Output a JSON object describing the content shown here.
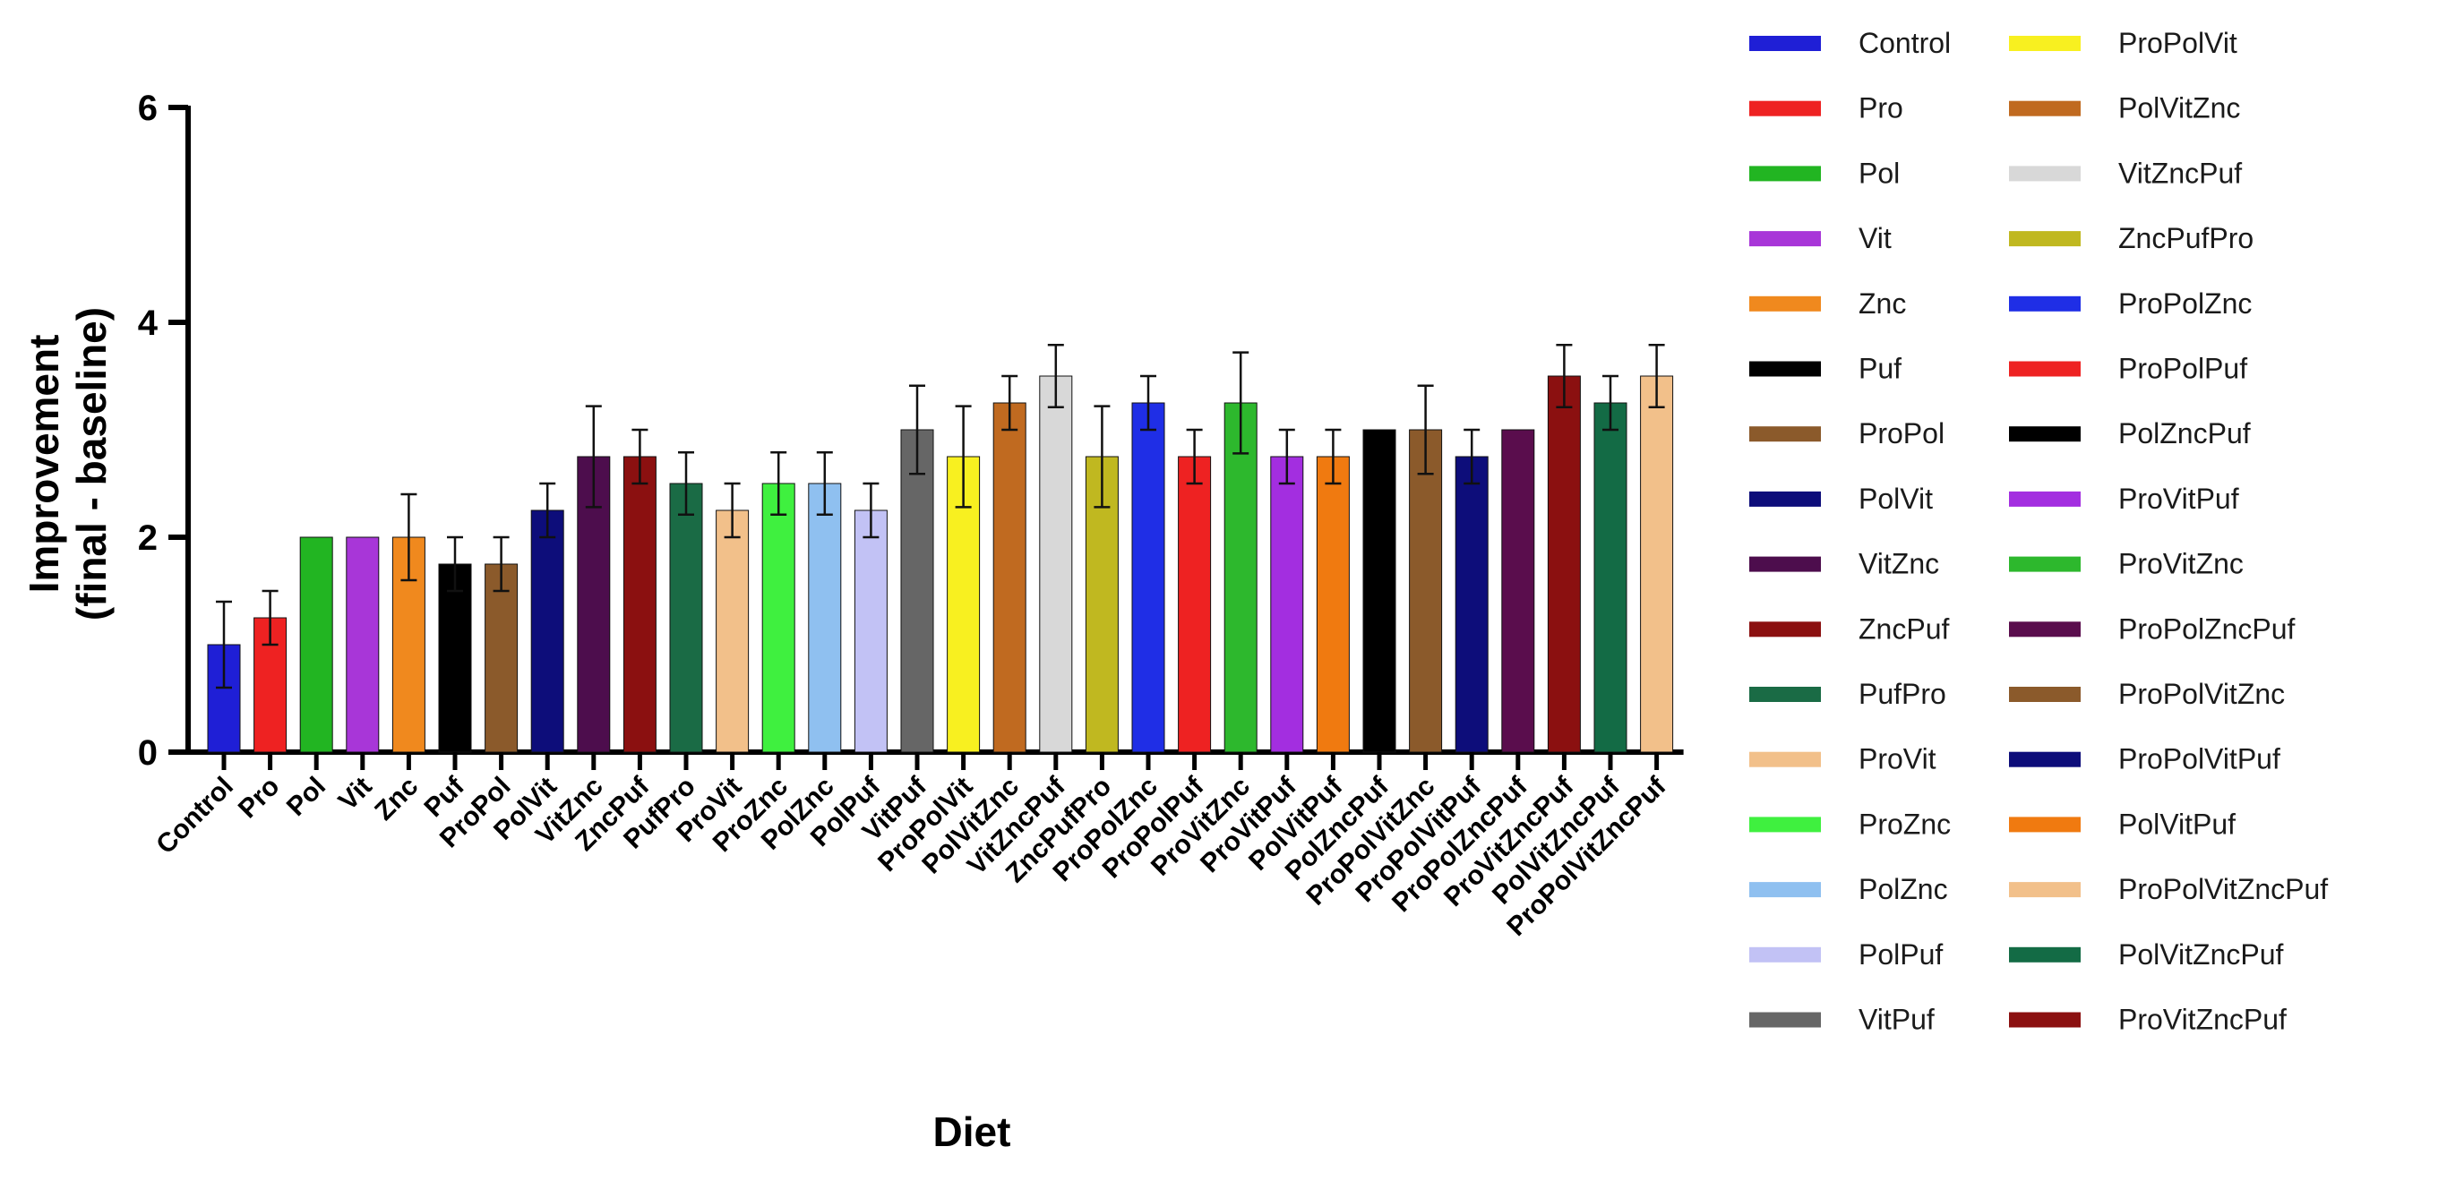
{
  "chart_data": {
    "type": "bar",
    "title": "",
    "xlabel": "Diet",
    "ylabel_line1": "Improvement",
    "ylabel_line2": "(final - baseline)",
    "ylim": [
      0,
      6
    ],
    "yticks": [
      "0",
      "2",
      "4",
      "6"
    ],
    "grid": false,
    "legend_position": "right",
    "categories": [
      "Control",
      "Pro",
      "Pol",
      "Vit",
      "Znc",
      "Puf",
      "ProPol",
      "PolVit",
      "VitZnc",
      "ZncPuf",
      "PufPro",
      "ProVit",
      "ProZnc",
      "PolZnc",
      "PolPuf",
      "VitPuf",
      "ProPolVit",
      "PolVitZnc",
      "VitZncPuf",
      "ZncPufPro",
      "ProPolZnc",
      "ProPolPuf",
      "ProVitZnc",
      "ProVitPuf",
      "PolVitPuf",
      "PolZncPuf",
      "ProPolVitZnc",
      "ProPolVitPuf",
      "ProPolZncPuf",
      "ProVitZncPuf",
      "PolVitZncPuf",
      "ProPolVitZncPuf"
    ],
    "values": [
      1.0,
      1.25,
      2.0,
      2.0,
      2.0,
      1.75,
      1.75,
      2.25,
      2.75,
      2.75,
      2.5,
      2.25,
      2.5,
      2.5,
      2.25,
      3.0,
      2.75,
      3.25,
      3.5,
      2.75,
      3.25,
      2.75,
      3.25,
      2.75,
      2.75,
      3.0,
      3.0,
      2.75,
      3.0,
      3.5,
      3.25,
      3.5
    ],
    "errors": [
      0.4,
      0.25,
      0,
      0,
      0.4,
      0.25,
      0.25,
      0.25,
      0.47,
      0.25,
      0.29,
      0.25,
      0.29,
      0.29,
      0.25,
      0.41,
      0.47,
      0.25,
      0.29,
      0.47,
      0.25,
      0.25,
      0.47,
      0.25,
      0.25,
      0,
      0.41,
      0.25,
      0,
      0.29,
      0.25,
      0.29
    ],
    "colors": [
      "#1f1fd6",
      "#ee2222",
      "#22b522",
      "#a836d8",
      "#f0891e",
      "#000000",
      "#8b5a2b",
      "#0d0d7a",
      "#4d0d4d",
      "#8b1010",
      "#1a6b45",
      "#f2c08a",
      "#3ff03f",
      "#8fc0f0",
      "#c2c2f5",
      "#666666",
      "#f8f020",
      "#c06a20",
      "#d8d8d8",
      "#c0b820",
      "#1f2ee6",
      "#ee2222",
      "#2db82d",
      "#a32ee0",
      "#f07a10",
      "#000000",
      "#8b5a2b",
      "#0d0d7a",
      "#5a0d4d",
      "#8b1010",
      "#136b45",
      "#f2c08a"
    ],
    "legend": [
      {
        "label": "Control",
        "color": "#1f1fd6"
      },
      {
        "label": "Pro",
        "color": "#ee2222"
      },
      {
        "label": "Pol",
        "color": "#22b522"
      },
      {
        "label": "Vit",
        "color": "#a836d8"
      },
      {
        "label": "Znc",
        "color": "#f0891e"
      },
      {
        "label": "Puf",
        "color": "#000000"
      },
      {
        "label": "ProPol",
        "color": "#8b5a2b"
      },
      {
        "label": "PolVit",
        "color": "#0d0d7a"
      },
      {
        "label": "VitZnc",
        "color": "#4d0d4d"
      },
      {
        "label": "ZncPuf",
        "color": "#8b1010"
      },
      {
        "label": "PufPro",
        "color": "#1a6b45"
      },
      {
        "label": "ProVit",
        "color": "#f2c08a"
      },
      {
        "label": "ProZnc",
        "color": "#3ff03f"
      },
      {
        "label": "PolZnc",
        "color": "#8fc0f0"
      },
      {
        "label": "PolPuf",
        "color": "#c2c2f5"
      },
      {
        "label": "VitPuf",
        "color": "#666666"
      },
      {
        "label": "ProPolVit",
        "color": "#f8f020"
      },
      {
        "label": "PolVitZnc",
        "color": "#c06a20"
      },
      {
        "label": "VitZncPuf",
        "color": "#d8d8d8"
      },
      {
        "label": "ZncPufPro",
        "color": "#c0b820"
      },
      {
        "label": "ProPolZnc",
        "color": "#1f2ee6"
      },
      {
        "label": "ProPolPuf",
        "color": "#ee2222"
      },
      {
        "label": "PolZncPuf",
        "color": "#000000"
      },
      {
        "label": "ProVitPuf",
        "color": "#a32ee0"
      },
      {
        "label": "ProVitZnc",
        "color": "#2db82d"
      },
      {
        "label": "ProPolZncPuf",
        "color": "#5a0d4d"
      },
      {
        "label": "ProPolVitZnc",
        "color": "#8b5a2b"
      },
      {
        "label": "ProPolVitPuf",
        "color": "#0d0d7a"
      },
      {
        "label": "PolVitPuf",
        "color": "#f07a10"
      },
      {
        "label": "ProPolVitZncPuf",
        "color": "#f2c08a"
      },
      {
        "label": "PolVitZncPuf",
        "color": "#136b45"
      },
      {
        "label": "ProVitZncPuf",
        "color": "#8b1010"
      }
    ]
  }
}
